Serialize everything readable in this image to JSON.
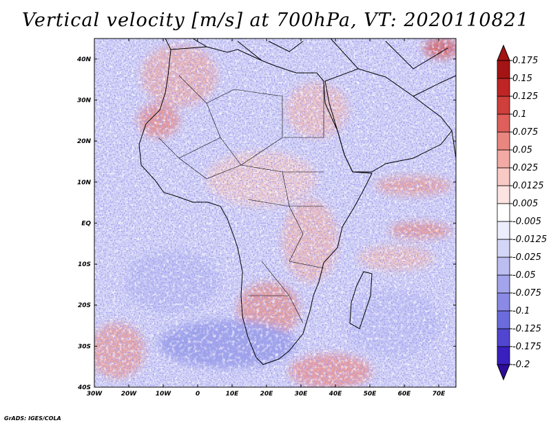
{
  "title": "Vertical velocity [m/s] at 700hPa, VT: 2020110821",
  "credit": "GrADS: IGES/COLA",
  "map": {
    "variable": "Vertical velocity",
    "units": "m/s",
    "level": "700hPa",
    "valid_time": "2020110821",
    "lon_range": [
      -30,
      75
    ],
    "lat_range": [
      -40,
      45
    ],
    "lon_ticks": [
      {
        "value": -30,
        "label": "30W"
      },
      {
        "value": -20,
        "label": "20W"
      },
      {
        "value": -10,
        "label": "10W"
      },
      {
        "value": 0,
        "label": "0"
      },
      {
        "value": 10,
        "label": "10E"
      },
      {
        "value": 20,
        "label": "20E"
      },
      {
        "value": 30,
        "label": "30E"
      },
      {
        "value": 40,
        "label": "40E"
      },
      {
        "value": 50,
        "label": "50E"
      },
      {
        "value": 60,
        "label": "60E"
      },
      {
        "value": 70,
        "label": "70E"
      }
    ],
    "lat_ticks": [
      {
        "value": 40,
        "label": "40N"
      },
      {
        "value": 30,
        "label": "30N"
      },
      {
        "value": 20,
        "label": "20N"
      },
      {
        "value": 10,
        "label": "10N"
      },
      {
        "value": 0,
        "label": "EQ"
      },
      {
        "value": -10,
        "label": "10S"
      },
      {
        "value": -20,
        "label": "20S"
      },
      {
        "value": -30,
        "label": "30S"
      },
      {
        "value": -40,
        "label": "40S"
      }
    ],
    "colorbar": {
      "colors": [
        "#2d0d9a",
        "#3a1fbf",
        "#5046cf",
        "#6c6bdc",
        "#8a8ae6",
        "#a3a5ec",
        "#bcbef2",
        "#d4d6f7",
        "#eceefc",
        "#ffffff",
        "#fde4e2",
        "#f8c9c5",
        "#f3aaa4",
        "#ea8680",
        "#df5f5a",
        "#cf3f3b",
        "#bf2525",
        "#a41414"
      ],
      "boundaries": [
        "-0.2",
        "-0.175",
        "-0.125",
        "-0.1",
        "-0.075",
        "-0.05",
        "-0.025",
        "-0.0125",
        "-0.005",
        "0.005",
        "0.0125",
        "0.025",
        "0.05",
        "0.075",
        "0.1",
        "0.125",
        "0.15",
        "0.175"
      ]
    }
  }
}
